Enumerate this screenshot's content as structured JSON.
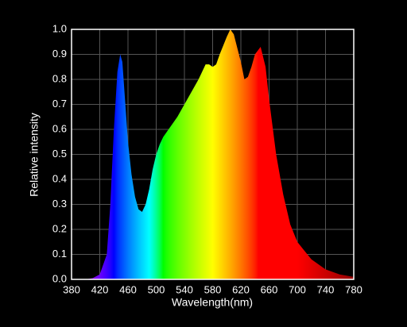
{
  "chart_data": {
    "type": "spectrum",
    "x_label": "Wavelength(nm)",
    "y_label": "Relative intensity",
    "x": [
      380,
      400,
      410,
      420,
      430,
      435,
      440,
      445,
      449,
      452,
      455,
      460,
      465,
      470,
      475,
      480,
      485,
      490,
      495,
      500,
      505,
      510,
      520,
      530,
      540,
      550,
      560,
      570,
      575,
      580,
      585,
      590,
      600,
      605,
      610,
      620,
      625,
      630,
      635,
      640,
      648,
      655,
      660,
      670,
      680,
      690,
      700,
      720,
      740,
      760,
      780
    ],
    "values": [
      0,
      0,
      0.005,
      0.02,
      0.1,
      0.3,
      0.6,
      0.83,
      0.9,
      0.87,
      0.75,
      0.55,
      0.42,
      0.33,
      0.28,
      0.27,
      0.3,
      0.36,
      0.44,
      0.5,
      0.54,
      0.57,
      0.61,
      0.65,
      0.7,
      0.75,
      0.8,
      0.86,
      0.86,
      0.85,
      0.86,
      0.9,
      0.97,
      1.0,
      0.98,
      0.87,
      0.8,
      0.81,
      0.85,
      0.9,
      0.93,
      0.85,
      0.72,
      0.5,
      0.34,
      0.22,
      0.15,
      0.08,
      0.04,
      0.02,
      0.01
    ],
    "xlim": [
      380,
      780
    ],
    "ylim": [
      0,
      1.0
    ],
    "xticks": [
      380,
      420,
      460,
      500,
      540,
      580,
      620,
      660,
      700,
      740,
      780
    ],
    "yticks": [
      {
        "value": 0,
        "label": "0.0"
      },
      0.1,
      0.2,
      0.3,
      0.4,
      0.5,
      0.6,
      0.7,
      0.8,
      0.9,
      {
        "value": 1.0,
        "label": "1.0"
      }
    ],
    "grid": true
  }
}
